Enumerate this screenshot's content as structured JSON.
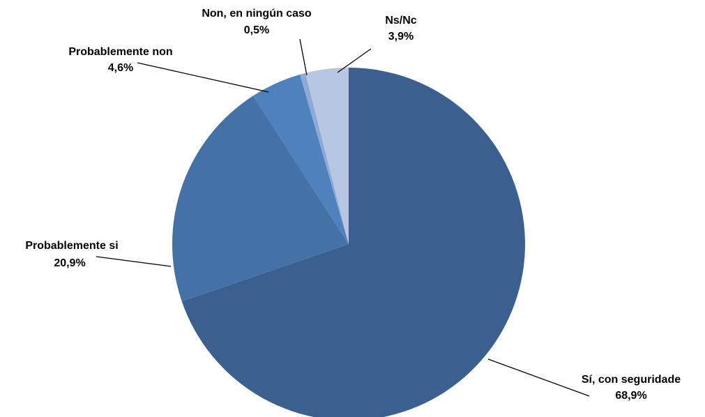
{
  "chart_data": {
    "type": "pie",
    "categories": [
      "Sí, con seguridade",
      "Probablemente si",
      "Probablemente non",
      "Non, en ningún caso",
      "Ns/Nc"
    ],
    "values": [
      68.9,
      20.9,
      4.6,
      0.5,
      3.9
    ],
    "value_labels": [
      "68,9%",
      "20,9%",
      "4,6%",
      "0,5%",
      "3,9%"
    ],
    "colors": [
      "#3b6090",
      "#4472a8",
      "#4f81bd",
      "#8ea9d6",
      "#b9c6e1"
    ]
  }
}
